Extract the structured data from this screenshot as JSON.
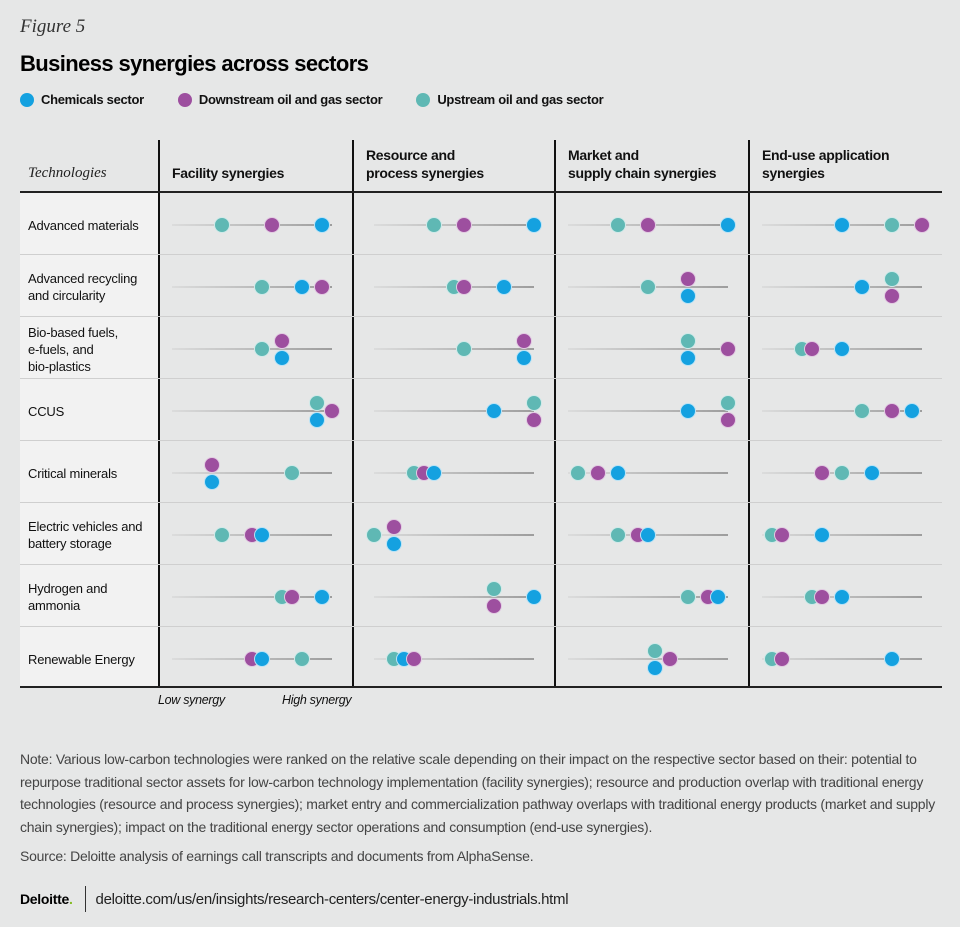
{
  "figure_label": "Figure 5",
  "chart_data": {
    "type": "dot-matrix",
    "title": "Business synergies across sectors",
    "legend": [
      {
        "key": "chem",
        "label": "Chemicals sector",
        "color": "#14a1e0"
      },
      {
        "key": "down",
        "label": "Downstream oil and gas sector",
        "color": "#9d4f9f"
      },
      {
        "key": "up",
        "label": "Upstream oil and gas sector",
        "color": "#5fb8b4"
      }
    ],
    "legend_position": "top-left",
    "row_header": "Technologies",
    "columns": [
      {
        "key": "facility",
        "label": "Facility synergies"
      },
      {
        "key": "resource",
        "label": "Resource and\nprocess synergies"
      },
      {
        "key": "market",
        "label": "Market and\nsupply chain synergies"
      },
      {
        "key": "enduse",
        "label": "End-use application\nsynergies"
      }
    ],
    "scale": {
      "min": 0,
      "max": 16,
      "low_label": "Low synergy",
      "high_label": "High synergy"
    },
    "rows": [
      {
        "label": "Advanced materials",
        "values": {
          "facility": [
            {
              "s": "up",
              "v": 5
            },
            {
              "s": "down",
              "v": 10
            },
            {
              "s": "chem",
              "v": 15
            }
          ],
          "resource": [
            {
              "s": "up",
              "v": 6
            },
            {
              "s": "down",
              "v": 9
            },
            {
              "s": "chem",
              "v": 16
            }
          ],
          "market": [
            {
              "s": "up",
              "v": 5
            },
            {
              "s": "down",
              "v": 8
            },
            {
              "s": "chem",
              "v": 16
            }
          ],
          "enduse": [
            {
              "s": "chem",
              "v": 8
            },
            {
              "s": "up",
              "v": 13
            },
            {
              "s": "down",
              "v": 16
            }
          ]
        }
      },
      {
        "label": "Advanced recycling\nand circularity",
        "values": {
          "facility": [
            {
              "s": "up",
              "v": 9
            },
            {
              "s": "chem",
              "v": 13
            },
            {
              "s": "down",
              "v": 15
            }
          ],
          "resource": [
            {
              "s": "up",
              "v": 8
            },
            {
              "s": "down",
              "v": 9
            },
            {
              "s": "chem",
              "v": 13
            }
          ],
          "market": [
            {
              "s": "up",
              "v": 8
            },
            {
              "s": "down",
              "v": 12,
              "stack": "top"
            },
            {
              "s": "chem",
              "v": 12,
              "stack": "bottom"
            }
          ],
          "enduse": [
            {
              "s": "chem",
              "v": 10
            },
            {
              "s": "up",
              "v": 13,
              "stack": "top"
            },
            {
              "s": "down",
              "v": 13,
              "stack": "bottom"
            }
          ]
        }
      },
      {
        "label": "Bio-based fuels,\ne-fuels, and\nbio-plastics",
        "values": {
          "facility": [
            {
              "s": "up",
              "v": 9
            },
            {
              "s": "down",
              "v": 11,
              "stack": "top"
            },
            {
              "s": "chem",
              "v": 11,
              "stack": "bottom"
            }
          ],
          "resource": [
            {
              "s": "up",
              "v": 9
            },
            {
              "s": "down",
              "v": 15,
              "stack": "top"
            },
            {
              "s": "chem",
              "v": 15,
              "stack": "bottom"
            }
          ],
          "market": [
            {
              "s": "up",
              "v": 12,
              "stack": "top"
            },
            {
              "s": "chem",
              "v": 12,
              "stack": "bottom"
            },
            {
              "s": "down",
              "v": 16
            }
          ],
          "enduse": [
            {
              "s": "up",
              "v": 4
            },
            {
              "s": "down",
              "v": 5
            },
            {
              "s": "chem",
              "v": 8
            }
          ]
        }
      },
      {
        "label": "CCUS",
        "values": {
          "facility": [
            {
              "s": "up",
              "v": 14.5,
              "stack": "top"
            },
            {
              "s": "chem",
              "v": 14.5,
              "stack": "bottom"
            },
            {
              "s": "down",
              "v": 16
            }
          ],
          "resource": [
            {
              "s": "chem",
              "v": 12
            },
            {
              "s": "up",
              "v": 16,
              "stack": "top"
            },
            {
              "s": "down",
              "v": 16,
              "stack": "bottom"
            }
          ],
          "market": [
            {
              "s": "chem",
              "v": 12
            },
            {
              "s": "up",
              "v": 16,
              "stack": "top"
            },
            {
              "s": "down",
              "v": 16,
              "stack": "bottom"
            }
          ],
          "enduse": [
            {
              "s": "up",
              "v": 10
            },
            {
              "s": "down",
              "v": 13
            },
            {
              "s": "chem",
              "v": 15
            }
          ]
        }
      },
      {
        "label": "Critical minerals",
        "values": {
          "facility": [
            {
              "s": "down",
              "v": 4,
              "stack": "top"
            },
            {
              "s": "chem",
              "v": 4,
              "stack": "bottom"
            },
            {
              "s": "up",
              "v": 12
            }
          ],
          "resource": [
            {
              "s": "up",
              "v": 4
            },
            {
              "s": "down",
              "v": 5
            },
            {
              "s": "chem",
              "v": 6
            }
          ],
          "market": [
            {
              "s": "up",
              "v": 1
            },
            {
              "s": "down",
              "v": 3
            },
            {
              "s": "chem",
              "v": 5
            }
          ],
          "enduse": [
            {
              "s": "down",
              "v": 6
            },
            {
              "s": "up",
              "v": 8
            },
            {
              "s": "chem",
              "v": 11
            }
          ]
        }
      },
      {
        "label": "Electric vehicles and\nbattery storage",
        "values": {
          "facility": [
            {
              "s": "up",
              "v": 5
            },
            {
              "s": "down",
              "v": 8
            },
            {
              "s": "chem",
              "v": 9
            }
          ],
          "resource": [
            {
              "s": "up",
              "v": 0
            },
            {
              "s": "down",
              "v": 2,
              "stack": "top"
            },
            {
              "s": "chem",
              "v": 2,
              "stack": "bottom"
            }
          ],
          "market": [
            {
              "s": "up",
              "v": 5
            },
            {
              "s": "down",
              "v": 7
            },
            {
              "s": "chem",
              "v": 8
            }
          ],
          "enduse": [
            {
              "s": "up",
              "v": 1
            },
            {
              "s": "down",
              "v": 2
            },
            {
              "s": "chem",
              "v": 6
            }
          ]
        }
      },
      {
        "label": "Hydrogen and\nammonia",
        "values": {
          "facility": [
            {
              "s": "up",
              "v": 11
            },
            {
              "s": "down",
              "v": 12
            },
            {
              "s": "chem",
              "v": 15
            }
          ],
          "resource": [
            {
              "s": "up",
              "v": 12,
              "stack": "top"
            },
            {
              "s": "down",
              "v": 12,
              "stack": "bottom"
            },
            {
              "s": "chem",
              "v": 16
            }
          ],
          "market": [
            {
              "s": "up",
              "v": 12
            },
            {
              "s": "down",
              "v": 14
            },
            {
              "s": "chem",
              "v": 15
            }
          ],
          "enduse": [
            {
              "s": "up",
              "v": 5
            },
            {
              "s": "down",
              "v": 6
            },
            {
              "s": "chem",
              "v": 8
            }
          ]
        }
      },
      {
        "label": "Renewable Energy",
        "values": {
          "facility": [
            {
              "s": "down",
              "v": 8
            },
            {
              "s": "chem",
              "v": 9
            },
            {
              "s": "up",
              "v": 13
            }
          ],
          "resource": [
            {
              "s": "up",
              "v": 2
            },
            {
              "s": "chem",
              "v": 3
            },
            {
              "s": "down",
              "v": 4
            }
          ],
          "market": [
            {
              "s": "up",
              "v": 8.7,
              "stack": "top"
            },
            {
              "s": "chem",
              "v": 8.7,
              "stack": "bottom"
            },
            {
              "s": "down",
              "v": 10.2
            }
          ],
          "enduse": [
            {
              "s": "up",
              "v": 1
            },
            {
              "s": "down",
              "v": 2
            },
            {
              "s": "chem",
              "v": 13
            }
          ]
        }
      }
    ]
  },
  "note": "Note: Various low-carbon technologies were ranked on the relative scale depending on their impact on the respective sector based on their: potential to repurpose traditional sector assets for low-carbon technology implementation (facility synergies); resource and production overlap with traditional energy technologies (resource and process synergies); market entry and commercialization pathway overlaps with traditional energy products (market and supply chain synergies); impact on the traditional energy sector operations and consumption (end-use synergies).",
  "source": "Source: Deloitte analysis of earnings call transcripts and documents from AlphaSense.",
  "footer": {
    "logo": "Deloitte",
    "logo_dot": ".",
    "url": "deloitte.com/us/en/insights/research-centers/center-energy-industrials.html"
  }
}
